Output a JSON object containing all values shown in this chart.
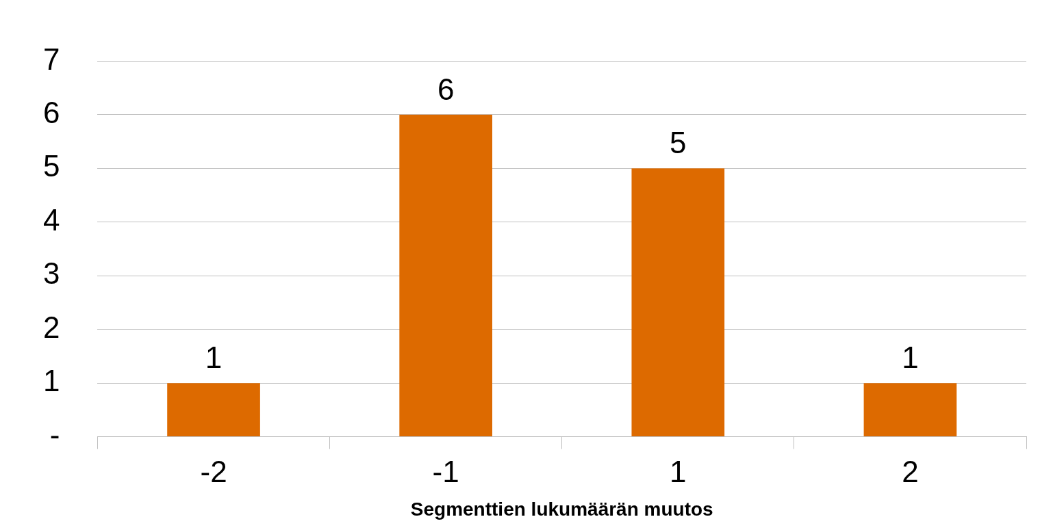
{
  "chart_data": {
    "type": "bar",
    "xlabel": "Segmenttien lukumäärän muutos",
    "categories": [
      "-2",
      "-1",
      "1",
      "2"
    ],
    "values": [
      1,
      6,
      5,
      1
    ],
    "color": "#dd6a00",
    "ylim": [
      0,
      7
    ],
    "yticks": [
      {
        "value": 0,
        "label": "-"
      },
      1,
      2,
      3,
      4,
      5,
      6,
      7
    ],
    "grid": "y",
    "data_labels": true,
    "legend": false
  }
}
